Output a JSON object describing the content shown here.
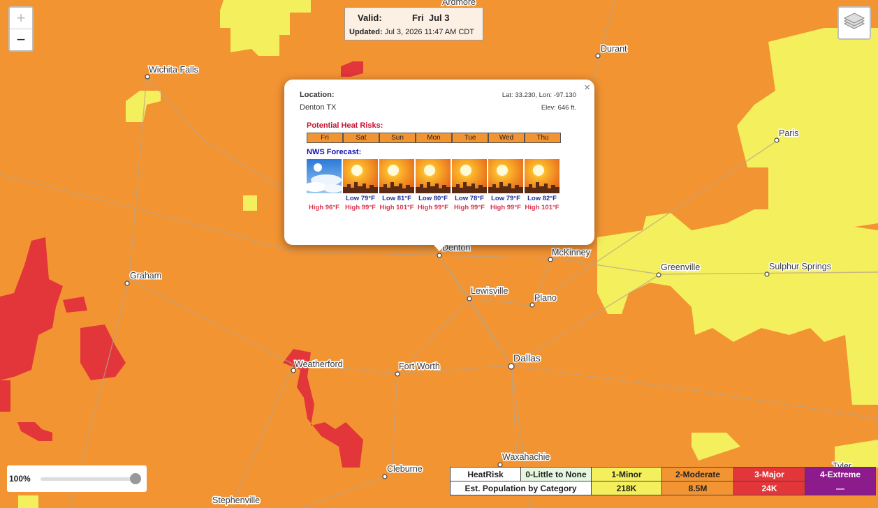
{
  "header": {
    "valid_label": "Valid:",
    "valid_day": "Fri  Jul 3",
    "updated_label": "Updated:",
    "updated_value": "Jul 3, 2026 11:47 AM CDT"
  },
  "zoom": {
    "zoom_in": "+",
    "zoom_out": "−"
  },
  "cities": [
    {
      "name": "Wichita Falls"
    },
    {
      "name": "Ardmore"
    },
    {
      "name": "Durant"
    },
    {
      "name": "Paris"
    },
    {
      "name": "Graham"
    },
    {
      "name": "Denton"
    },
    {
      "name": "McKinney"
    },
    {
      "name": "Greenville"
    },
    {
      "name": "Sulphur Springs"
    },
    {
      "name": "Lewisville"
    },
    {
      "name": "Plano"
    },
    {
      "name": "Dallas"
    },
    {
      "name": "Weatherford"
    },
    {
      "name": "Fort Worth"
    },
    {
      "name": "Waxahachie"
    },
    {
      "name": "Cleburne"
    },
    {
      "name": "Stephenville"
    },
    {
      "name": "Tyler"
    }
  ],
  "popup": {
    "close": "×",
    "location_label": "Location:",
    "location": "Denton TX",
    "latlon": "Lat: 33.230, Lon: -97.130",
    "elevation": "Elev: 646 ft.",
    "heat_risk_title": "Potential Heat Risks:",
    "days": [
      "Fri",
      "Sat",
      "Sun",
      "Mon",
      "Tue",
      "Wed",
      "Thu"
    ],
    "forecast_title": "NWS Forecast:",
    "forecast": [
      {
        "high": "High 96°F"
      },
      {
        "low": "Low 79°F",
        "high": "High 99°F"
      },
      {
        "low": "Low 81°F",
        "high": "High 101°F"
      },
      {
        "low": "Low 80°F",
        "high": "High 99°F"
      },
      {
        "low": "Low 78°F",
        "high": "High 99°F"
      },
      {
        "low": "Low 79°F",
        "high": "High 99°F"
      },
      {
        "low": "Low 82°F",
        "high": "High 101°F"
      }
    ]
  },
  "opacity": {
    "label": "100%"
  },
  "legend": {
    "header": "HeatRisk",
    "categories": [
      "0-Little to None",
      "1-Minor",
      "2-Moderate",
      "3-Major",
      "4-Extreme"
    ],
    "population_label": "Est. Population by Category",
    "population": [
      "218K",
      "8.5M",
      "24K",
      "—"
    ]
  }
}
